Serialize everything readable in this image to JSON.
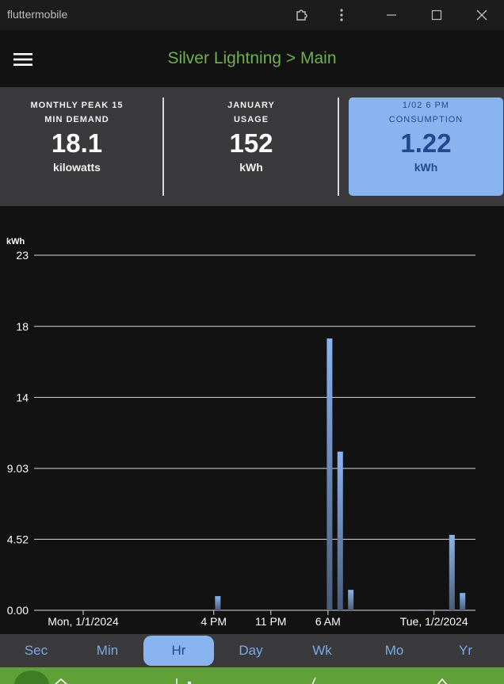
{
  "window": {
    "title": "fluttermobile"
  },
  "header": {
    "title": "Silver Lightning > Main"
  },
  "stats": [
    {
      "label_line1": "MONTHLY PEAK 15",
      "label_line2": "MIN DEMAND",
      "value": "18.1",
      "unit": "kilowatts"
    },
    {
      "label_line1": "JANUARY",
      "label_line2": "USAGE",
      "value": "152",
      "unit": "kWh"
    },
    {
      "label_line1": "1/02 6 PM",
      "label_line2": "CONSUMPTION",
      "value": "1.22",
      "unit": "kWh"
    }
  ],
  "chart_data": {
    "type": "bar",
    "ylabel": "kWh",
    "ylim": [
      0,
      23
    ],
    "y_ticks": [
      "23",
      "18",
      "14",
      "9.03",
      "4.52",
      "0.00"
    ],
    "y_tick_values": [
      22.6,
      18.07,
      13.55,
      9.03,
      4.52,
      0
    ],
    "x_ticks": [
      "Mon, 1/1/2024",
      "4 PM",
      "11 PM",
      "6 AM",
      "Tue, 1/2/2024"
    ],
    "x_tick_hours": [
      0,
      16,
      23,
      30,
      43
    ],
    "x_hours": [
      16.5,
      30.2,
      31.5,
      32.8,
      41.5,
      45.2,
      46.5
    ],
    "values": [
      0.9,
      17.3,
      10.1,
      1.3,
      0.05,
      4.8,
      1.1
    ],
    "color": "#8ab4f0",
    "grid": true
  },
  "tabs": {
    "items": [
      "Sec",
      "Min",
      "Hr",
      "Day",
      "Wk",
      "Mo",
      "Yr"
    ],
    "selected": "Hr"
  }
}
